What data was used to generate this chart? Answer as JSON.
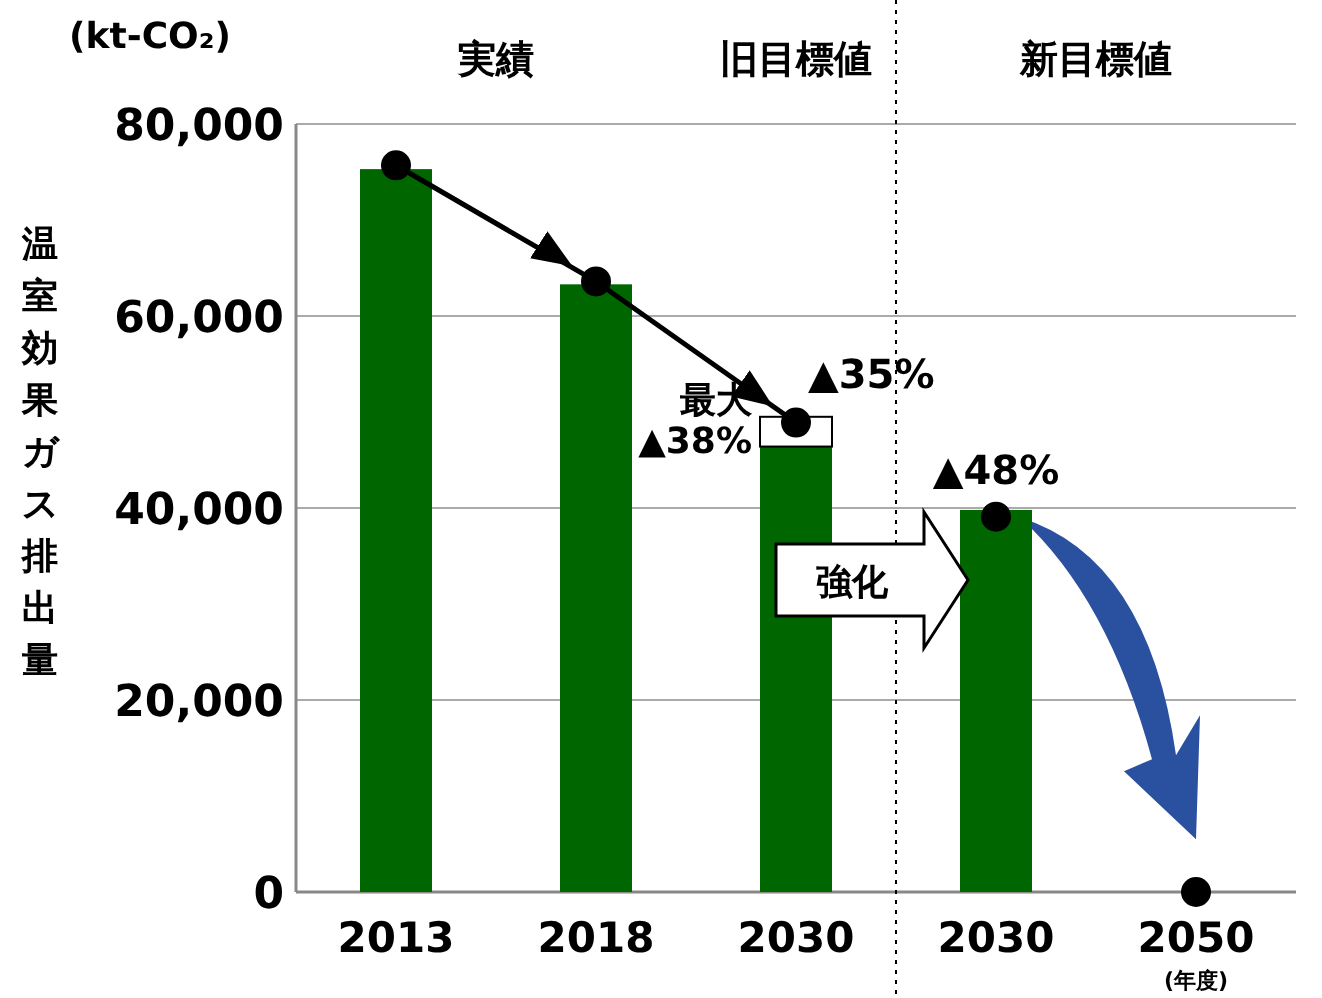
{
  "chart_data": {
    "type": "bar",
    "ylabel": "温室効果ガス排出量",
    "categories": [
      "2013",
      "2018",
      "2030",
      "2030",
      "2050"
    ],
    "stacked": true,
    "series": [
      {
        "color": "#006600",
        "values": [
          75300,
          63300,
          46400,
          39800,
          null
        ]
      },
      {
        "color": "#ffffff",
        "values": [
          null,
          null,
          3100,
          null,
          null
        ]
      },
      {
        "type": "line",
        "color": "#000000",
        "marker": "circle",
        "values": [
          75700,
          63600,
          48900,
          null,
          null
        ]
      },
      {
        "type": "scatter",
        "color": "#000000",
        "marker": "circle",
        "values": [
          null,
          null,
          null,
          39100,
          0
        ]
      }
    ],
    "ylim": [
      0,
      80000
    ],
    "yticks": [
      0,
      {
        "value": 20000,
        "label": "20,000"
      },
      {
        "value": 40000,
        "label": "40,000"
      },
      {
        "value": 60000,
        "label": "60,000"
      },
      {
        "value": 80000,
        "label": "80,000"
      }
    ],
    "grid": "y",
    "annotations": [
      "実績",
      "旧目標値",
      "新目標値",
      "▲35%",
      "最大\n▲38%",
      "▲48%",
      "強化",
      "(年度)",
      "(kt-CO₂)"
    ]
  }
}
